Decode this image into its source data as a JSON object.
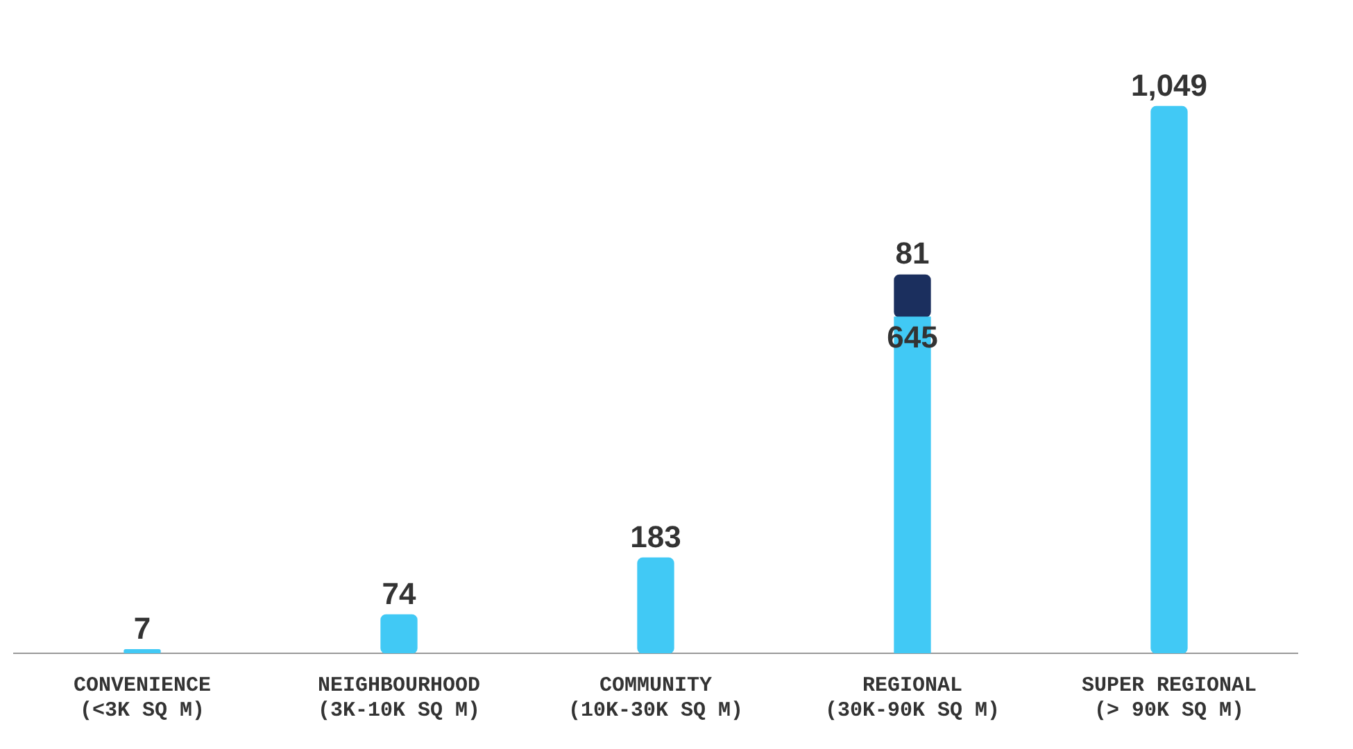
{
  "chart_data": {
    "type": "bar",
    "stacked": true,
    "tick_labels": "x",
    "grid": false,
    "legend": false,
    "categories": [
      "CONVENIENCE\n(<3K SQ M)",
      "NEIGHBOURHOOD\n(3K-10K SQ M)",
      "COMMUNITY\n(10K-30K SQ M)",
      "REGIONAL\n(30K-90K SQ M)",
      "SUPER REGIONAL\n(> 90K SQ M)"
    ],
    "series": [
      {
        "color": "#41c9f5",
        "values": [
          7,
          74,
          183,
          645,
          1049
        ],
        "value_labels": [
          "7",
          "74",
          "183",
          "645",
          "1,049"
        ]
      },
      {
        "color": "#1b2f5e",
        "values": [
          null,
          null,
          null,
          81,
          null
        ],
        "value_labels": [
          null,
          null,
          null,
          "81",
          null
        ]
      }
    ]
  }
}
